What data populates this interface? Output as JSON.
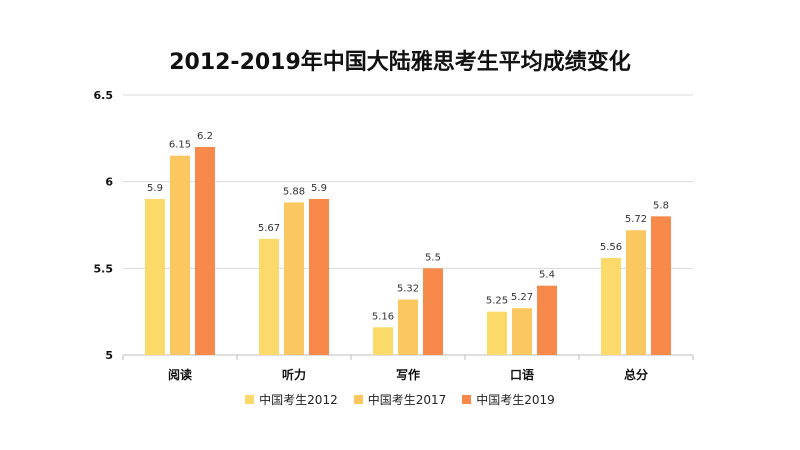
{
  "chart_data": {
    "type": "bar",
    "title": "2012-2019年中国大陆雅思考生平均成绩变化",
    "categories": [
      "阅读",
      "听力",
      "写作",
      "口语",
      "总分"
    ],
    "series": [
      {
        "name": "中国考生2012",
        "color": "#FCDA6A",
        "values": [
          5.9,
          5.67,
          5.16,
          5.25,
          5.56
        ]
      },
      {
        "name": "中国考生2017",
        "color": "#FBC761",
        "values": [
          6.15,
          5.88,
          5.32,
          5.27,
          5.72
        ]
      },
      {
        "name": "中国考生2019",
        "color": "#F7894A",
        "values": [
          6.2,
          5.9,
          5.5,
          5.4,
          5.8
        ]
      }
    ],
    "y_ticks": [
      "5",
      "5.5",
      "6",
      "6.5"
    ],
    "ylim": [
      5,
      6.5
    ],
    "grid": true,
    "legend_position": "bottom"
  }
}
